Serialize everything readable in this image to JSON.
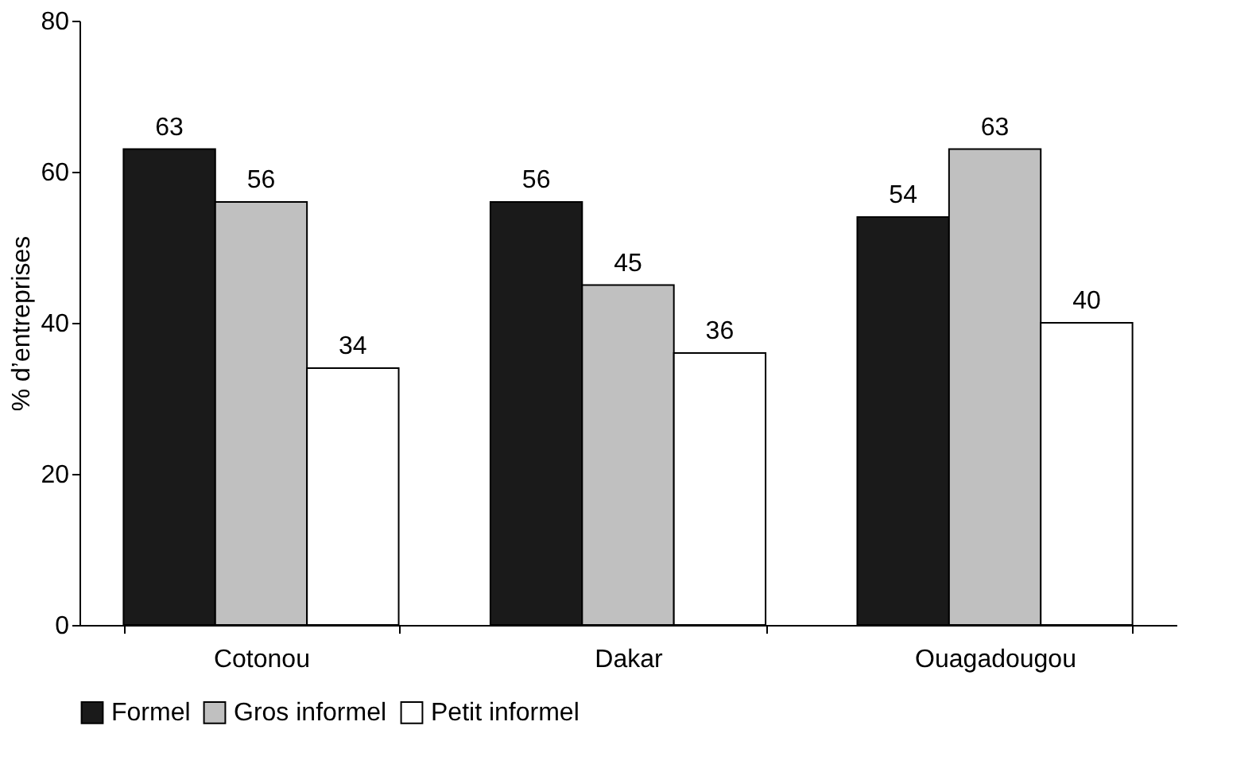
{
  "chart_data": {
    "type": "bar",
    "ylabel": "% d’entreprises",
    "categories": [
      "Cotonou",
      "Dakar",
      "Ouagadougou"
    ],
    "series": [
      {
        "name": "Formel",
        "color": "#1a1a1a",
        "values": [
          63,
          56,
          54
        ]
      },
      {
        "name": "Gros informel",
        "color": "#c0c0c0",
        "values": [
          56,
          45,
          63
        ]
      },
      {
        "name": "Petit informel",
        "color": "#ffffff",
        "values": [
          34,
          36,
          40
        ]
      }
    ],
    "ylim": [
      0,
      80
    ],
    "yticks": [
      0,
      20,
      40,
      60,
      80
    ],
    "grid": false,
    "legend": "bottom",
    "data_labels": true
  }
}
